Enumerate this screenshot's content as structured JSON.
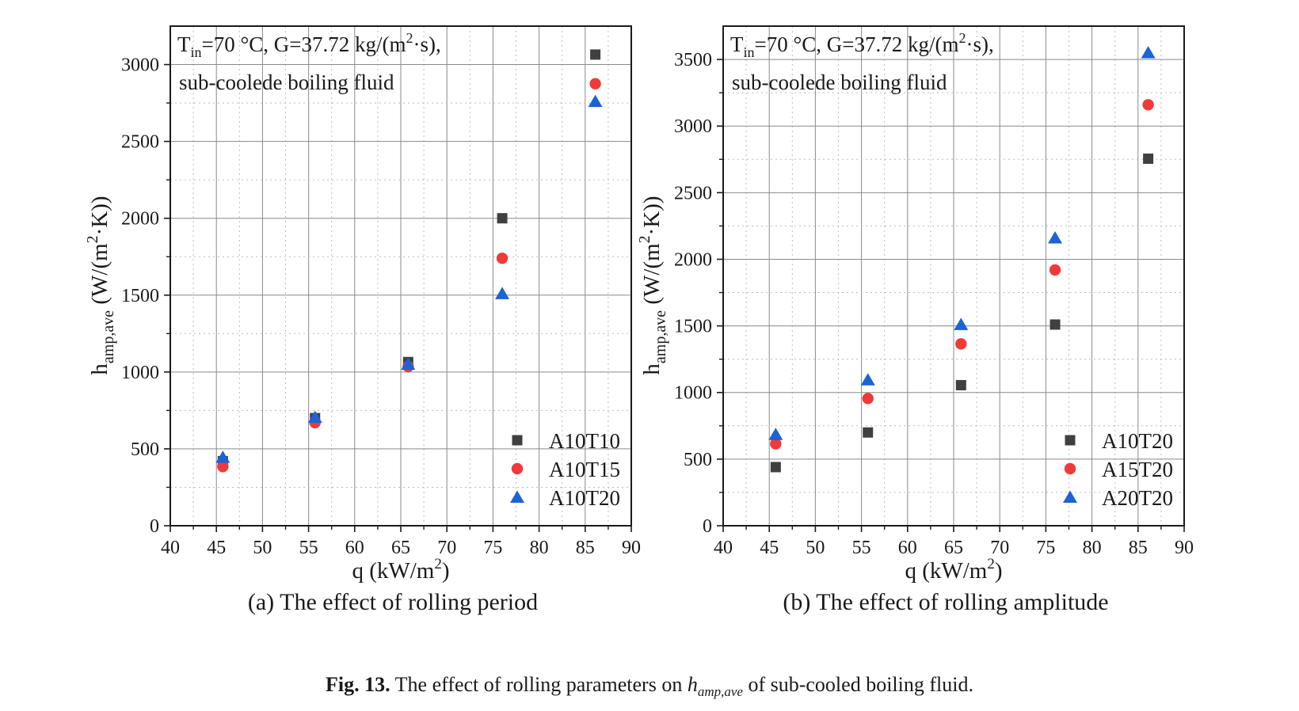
{
  "figure": {
    "caption_label": "Fig. 13.",
    "caption_text_before": "The effect of rolling parameters on",
    "caption_symbol": "h",
    "caption_symbol_sub": "amp,ave",
    "caption_text_after": "of sub-cooled boiling fluid."
  },
  "chart_data": [
    {
      "type": "scatter",
      "subcaption": "(a) The effect of rolling period",
      "annotation": {
        "line1_T": "T",
        "line1_sub": "in",
        "line1_rest": "=70 °C, G=37.72 kg/(m",
        "line1_sup": "2",
        "line1_end": "·s),",
        "line2": "sub-coolede boiling fluid"
      },
      "xlabel": {
        "main": "q (kW/m",
        "sup": "2",
        "end": ")"
      },
      "ylabel": {
        "h": "h",
        "sub": "amp,ave",
        "rest": " (W/(m",
        "sup": "2",
        "end": "·K))"
      },
      "xlim": [
        40,
        90
      ],
      "ylim": [
        0,
        3250
      ],
      "xticks": [
        40,
        45,
        50,
        55,
        60,
        65,
        70,
        75,
        80,
        85,
        90
      ],
      "yticks": [
        0,
        500,
        1000,
        1500,
        2000,
        2500,
        3000
      ],
      "grid": true,
      "legend_position": "bottom-right",
      "series": [
        {
          "name": "A10T10",
          "marker": "square",
          "color": "#404040",
          "x": [
            45.7,
            55.7,
            65.8,
            76.0,
            86.1
          ],
          "y": [
            420,
            700,
            1065,
            2000,
            3065
          ]
        },
        {
          "name": "A10T15",
          "marker": "circle",
          "color": "#f03a3a",
          "x": [
            45.7,
            55.7,
            65.8,
            76.0,
            86.1
          ],
          "y": [
            385,
            670,
            1035,
            1740,
            2875
          ]
        },
        {
          "name": "A10T20",
          "marker": "triangle",
          "color": "#1b63d6",
          "x": [
            45.7,
            55.7,
            65.8,
            76.0,
            86.1
          ],
          "y": [
            445,
            705,
            1050,
            1510,
            2760
          ]
        }
      ]
    },
    {
      "type": "scatter",
      "subcaption": "(b) The effect of rolling amplitude",
      "annotation": {
        "line1_T": "T",
        "line1_sub": "in",
        "line1_rest": "=70 °C, G=37.72 kg/(m",
        "line1_sup": "2",
        "line1_end": "·s),",
        "line2": "sub-coolede boiling fluid"
      },
      "xlabel": {
        "main": "q (kW/m",
        "sup": "2",
        "end": ")"
      },
      "ylabel": {
        "h": "h",
        "sub": "amp,ave",
        "rest": " (W/(m",
        "sup": "2",
        "end": "·K))"
      },
      "xlim": [
        40,
        90
      ],
      "ylim": [
        0,
        3750
      ],
      "xticks": [
        40,
        45,
        50,
        55,
        60,
        65,
        70,
        75,
        80,
        85,
        90
      ],
      "yticks": [
        0,
        500,
        1000,
        1500,
        2000,
        2500,
        3000,
        3500
      ],
      "grid": true,
      "legend_position": "bottom-right",
      "series": [
        {
          "name": "A10T20",
          "marker": "square",
          "color": "#404040",
          "x": [
            45.7,
            55.7,
            65.8,
            76.0,
            86.1
          ],
          "y": [
            440,
            700,
            1055,
            1510,
            2755
          ]
        },
        {
          "name": "A15T20",
          "marker": "circle",
          "color": "#f03a3a",
          "x": [
            45.7,
            55.7,
            65.8,
            76.0,
            86.1
          ],
          "y": [
            615,
            955,
            1365,
            1920,
            3160
          ]
        },
        {
          "name": "A20T20",
          "marker": "triangle",
          "color": "#1b63d6",
          "x": [
            45.7,
            55.7,
            65.8,
            76.0,
            86.1
          ],
          "y": [
            685,
            1095,
            1510,
            2160,
            3550
          ]
        }
      ]
    }
  ]
}
